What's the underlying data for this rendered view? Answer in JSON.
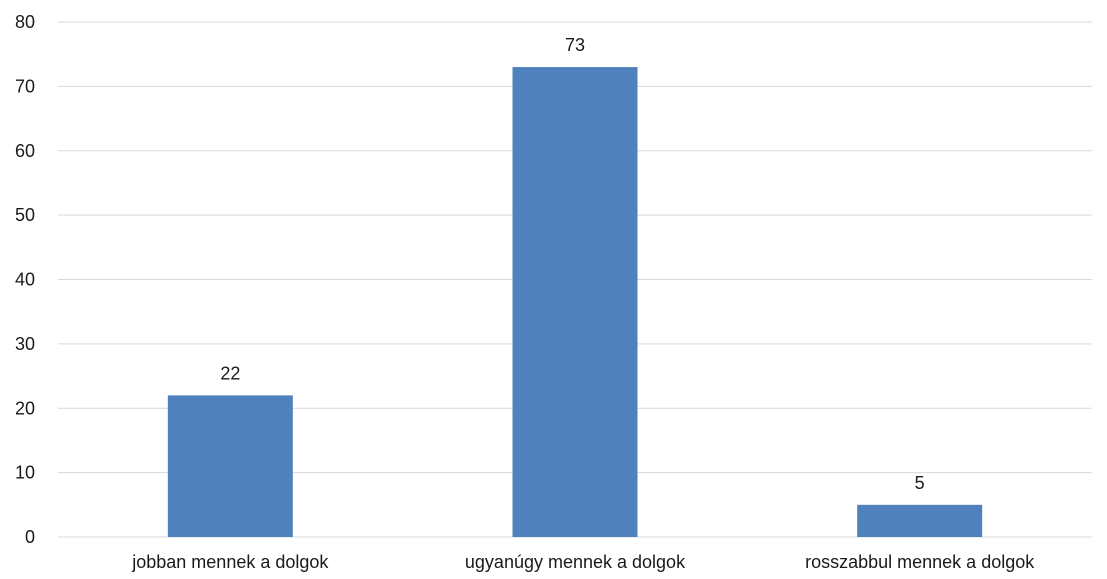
{
  "chart_data": {
    "type": "bar",
    "categories": [
      "jobban mennek a dolgok",
      "ugyanúgy mennek a dolgok",
      "rosszabbul mennek a dolgok"
    ],
    "values": [
      22,
      73,
      5
    ],
    "title": "",
    "xlabel": "",
    "ylabel": "",
    "ylim": [
      0,
      80
    ],
    "yticks": [
      0,
      10,
      20,
      30,
      40,
      50,
      60,
      70,
      80
    ],
    "grid": true,
    "legend": "none",
    "bar_color": "#4f81bd",
    "data_labels": [
      "22",
      "73",
      "5"
    ],
    "ytick_labels": [
      "0",
      "10",
      "20",
      "30",
      "40",
      "50",
      "60",
      "70",
      "80"
    ]
  }
}
